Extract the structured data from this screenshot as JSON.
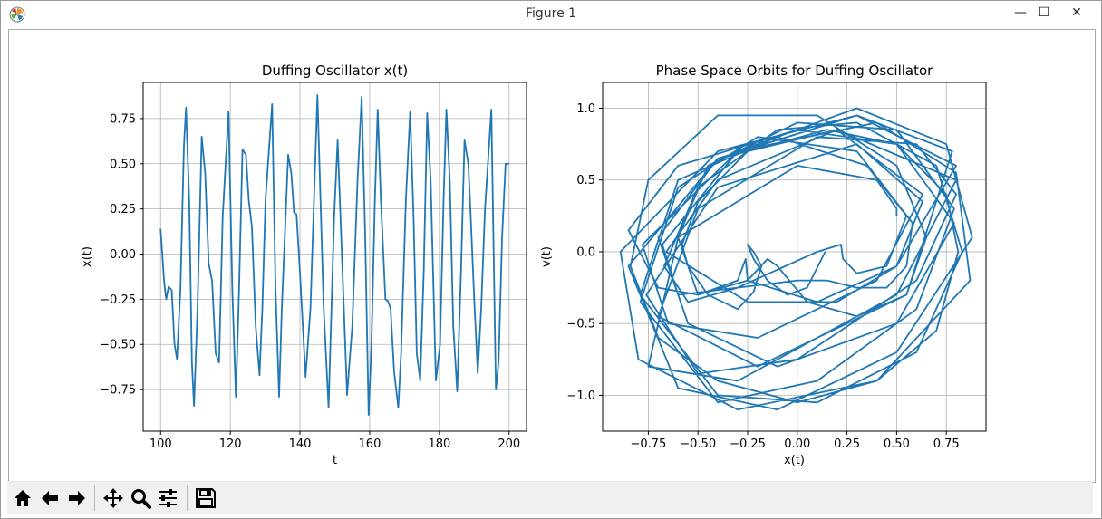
{
  "window": {
    "title": "Figure 1",
    "minimize_glyph": "—",
    "maximize_glyph": "☐",
    "close_glyph": "✕",
    "app_icon": "matplotlib-icon"
  },
  "toolbar": {
    "buttons": [
      {
        "name": "home-icon",
        "tooltip": "Reset original view"
      },
      {
        "name": "back-icon",
        "tooltip": "Back"
      },
      {
        "name": "forward-icon",
        "tooltip": "Forward"
      },
      {
        "name": "pan-icon",
        "tooltip": "Pan"
      },
      {
        "name": "zoom-icon",
        "tooltip": "Zoom"
      },
      {
        "name": "configure-subplots-icon",
        "tooltip": "Configure subplots"
      },
      {
        "name": "save-icon",
        "tooltip": "Save"
      }
    ]
  },
  "chart_data": [
    {
      "type": "line",
      "title": "Duffing Oscillator x(t)",
      "xlabel": "t",
      "ylabel": "x(t)",
      "xlim": [
        95,
        205
      ],
      "ylim": [
        -0.98,
        0.95
      ],
      "xticks": [
        100,
        120,
        140,
        160,
        180,
        200
      ],
      "yticks": [
        -0.75,
        -0.5,
        -0.25,
        0.0,
        0.25,
        0.5,
        0.75
      ],
      "xtick_labels": [
        "100",
        "120",
        "140",
        "160",
        "180",
        "200"
      ],
      "ytick_labels": [
        "−0.75",
        "−0.50",
        "−0.25",
        "0.00",
        "0.25",
        "0.50",
        "0.75"
      ],
      "grid": true,
      "color": "#1f77b4",
      "series": [
        {
          "x": [
            100,
            101,
            101.6,
            102.3,
            103.2,
            104,
            104.7,
            105.7,
            106.7,
            107.3,
            108.2,
            109,
            109.6,
            110.6,
            111.8,
            112.8,
            113.8,
            114.8,
            115.8,
            116.8,
            117.8,
            119.5,
            120.6,
            121.6,
            122.5,
            123.5,
            124.5,
            125.3,
            126.2,
            127.3,
            128.4,
            129.2,
            130.1,
            132,
            133,
            134,
            134.8,
            136.6,
            137.5,
            138.3,
            139,
            140,
            141.6,
            143,
            145,
            146.8,
            148.2,
            149.8,
            150.8,
            152.2,
            153.5,
            155,
            156.5,
            157.7,
            158.7,
            159.7,
            160.5,
            161.5,
            162.3,
            163.2,
            164.5,
            165.2,
            166,
            167,
            168.2,
            169,
            170.4,
            171.6,
            172.6,
            173.5,
            174.5,
            175.5,
            176.5,
            177.5,
            179,
            180.2,
            181.2,
            182,
            183,
            184,
            185.1,
            186.2,
            187.2,
            188.3,
            189,
            190,
            191,
            192,
            193.1,
            194.9,
            196.2,
            197,
            198,
            199,
            200
          ],
          "y": [
            0.14,
            -0.15,
            -0.25,
            -0.18,
            -0.2,
            -0.5,
            -0.58,
            -0.2,
            0.6,
            0.81,
            0.3,
            -0.6,
            -0.84,
            -0.3,
            0.65,
            0.45,
            -0.05,
            -0.15,
            -0.55,
            -0.6,
            0.2,
            0.79,
            -0.2,
            -0.79,
            -0.2,
            0.58,
            0.55,
            0.3,
            0.15,
            -0.4,
            -0.67,
            -0.3,
            0.3,
            0.83,
            -0.2,
            -0.79,
            -0.3,
            0.55,
            0.45,
            0.23,
            0.22,
            -0.1,
            -0.68,
            -0.3,
            0.88,
            -0.3,
            -0.85,
            0.2,
            0.63,
            -0.1,
            -0.78,
            -0.4,
            0.4,
            0.87,
            0.1,
            -0.89,
            -0.5,
            0.3,
            0.8,
            0.3,
            -0.25,
            -0.26,
            -0.3,
            -0.65,
            -0.85,
            -0.55,
            0.3,
            0.79,
            0.2,
            -0.55,
            -0.7,
            -0.1,
            0.78,
            0.4,
            -0.7,
            -0.5,
            0.3,
            0.8,
            0.4,
            -0.4,
            -0.76,
            -0.1,
            0.63,
            0.5,
            0.2,
            -0.25,
            -0.66,
            -0.3,
            0.25,
            0.8,
            -0.75,
            -0.6,
            0.1,
            0.5,
            0.5
          ]
        }
      ]
    },
    {
      "type": "line",
      "title": "Phase Space Orbits for Duffing Oscillator",
      "xlabel": "x(t)",
      "ylabel": "v(t)",
      "xlim": [
        -0.98,
        0.95
      ],
      "ylim": [
        -1.25,
        1.18
      ],
      "xticks": [
        -0.75,
        -0.5,
        -0.25,
        0.0,
        0.25,
        0.5,
        0.75
      ],
      "yticks": [
        -1.0,
        -0.5,
        0.0,
        0.5,
        1.0
      ],
      "xtick_labels": [
        "−0.75",
        "−0.50",
        "−0.25",
        "0.00",
        "0.25",
        "0.50",
        "0.75"
      ],
      "ytick_labels": [
        "−1.0",
        "−0.5",
        "0.0",
        "0.5",
        "1.0"
      ],
      "grid": true,
      "color": "#1f77b4",
      "series": [
        {
          "x": [
            0.14,
            0.05,
            -0.05,
            -0.15,
            -0.22,
            -0.25,
            -0.22,
            -0.18,
            -0.22,
            -0.3,
            -0.45,
            -0.55,
            -0.58,
            -0.5,
            -0.25,
            0.15,
            0.5,
            0.75,
            0.81,
            0.7,
            0.4,
            0.0,
            -0.4,
            -0.7,
            -0.84,
            -0.75,
            -0.4,
            0.1,
            0.5,
            0.65,
            0.55,
            0.3,
            0.05,
            -0.1,
            -0.15,
            -0.25,
            -0.5,
            -0.6,
            -0.45,
            0.0,
            0.5,
            0.79,
            0.6,
            0.1,
            -0.4,
            -0.79,
            -0.6,
            -0.2,
            0.3,
            0.58,
            0.55,
            0.45,
            0.3,
            0.15,
            0.0,
            -0.3,
            -0.55,
            -0.67,
            -0.5,
            -0.1,
            0.3,
            0.7,
            0.83,
            0.6,
            0.1,
            -0.4,
            -0.79,
            -0.6,
            -0.1,
            0.35,
            0.55,
            0.45,
            0.3,
            0.23,
            0.22,
            0.1,
            -0.3,
            -0.6,
            -0.68,
            -0.3,
            0.3,
            0.75,
            0.88,
            0.5,
            -0.1,
            -0.6,
            -0.85,
            -0.4,
            0.2,
            0.63,
            0.4,
            -0.2,
            -0.65,
            -0.78,
            -0.3,
            0.4,
            0.8,
            0.87,
            0.4,
            -0.3,
            -0.8,
            -0.89,
            -0.4,
            0.3,
            0.8,
            0.5,
            0.1,
            -0.25,
            -0.26,
            -0.3,
            -0.5,
            -0.7,
            -0.85,
            -0.6,
            0.0,
            0.5,
            0.79,
            0.5,
            -0.1,
            -0.55,
            -0.7,
            -0.4,
            0.3,
            0.78,
            0.55,
            -0.2,
            -0.7,
            -0.5,
            0.1,
            0.6,
            0.8,
            0.6,
            0.0,
            -0.5,
            -0.76,
            -0.4,
            0.3,
            0.63,
            0.5,
            0.2,
            -0.25,
            -0.66,
            -0.4,
            0.2,
            0.8,
            0.5,
            -0.3,
            -0.75,
            -0.6,
            0.0,
            0.4,
            0.5,
            0.5
          ],
          "y": [
            0.0,
            -0.25,
            -0.3,
            -0.2,
            -0.05,
            0.05,
            0.0,
            -0.1,
            -0.28,
            -0.4,
            -0.3,
            -0.1,
            0.05,
            0.35,
            0.7,
            0.85,
            0.75,
            0.4,
            0.0,
            -0.55,
            -0.9,
            -1.05,
            -0.9,
            -0.6,
            -0.1,
            0.5,
            0.95,
            0.95,
            0.6,
            0.1,
            -0.3,
            -0.45,
            -0.35,
            -0.1,
            -0.05,
            -0.2,
            -0.3,
            0.1,
            0.6,
            0.9,
            0.85,
            0.3,
            -0.4,
            -0.9,
            -1.05,
            -0.35,
            0.45,
            0.8,
            0.7,
            0.2,
            -0.1,
            -0.25,
            -0.25,
            -0.2,
            -0.2,
            -0.25,
            -0.35,
            -0.1,
            0.45,
            0.85,
            0.9,
            0.6,
            0.0,
            -0.7,
            -1.05,
            -1.0,
            -0.3,
            0.5,
            0.8,
            0.6,
            0.25,
            -0.1,
            -0.15,
            -0.05,
            0.05,
            0.0,
            -0.25,
            -0.3,
            0.05,
            0.7,
            1.0,
            0.75,
            0.1,
            -0.7,
            -1.1,
            -0.95,
            -0.1,
            0.65,
            0.85,
            0.4,
            -0.2,
            -0.6,
            -0.5,
            0.05,
            0.7,
            0.9,
            0.55,
            -0.2,
            -0.9,
            -1.1,
            -0.75,
            0.0,
            0.7,
            0.95,
            0.6,
            -0.1,
            -0.35,
            -0.2,
            -0.05,
            -0.2,
            -0.3,
            -0.25,
            0.15,
            0.6,
            0.85,
            0.75,
            0.2,
            -0.5,
            -0.8,
            -0.5,
            0.1,
            0.65,
            0.95,
            0.7,
            -0.3,
            -0.8,
            -0.45,
            0.3,
            0.8,
            0.75,
            0.4,
            -0.2,
            -0.75,
            -0.85,
            -0.3,
            0.45,
            0.75,
            0.35,
            -0.1,
            -0.35,
            -0.35,
            0.0,
            0.5,
            0.85,
            0.5,
            -0.3,
            -0.9,
            -0.8,
            0.1,
            0.6,
            0.5,
            0.3,
            0.25
          ]
        }
      ]
    }
  ]
}
